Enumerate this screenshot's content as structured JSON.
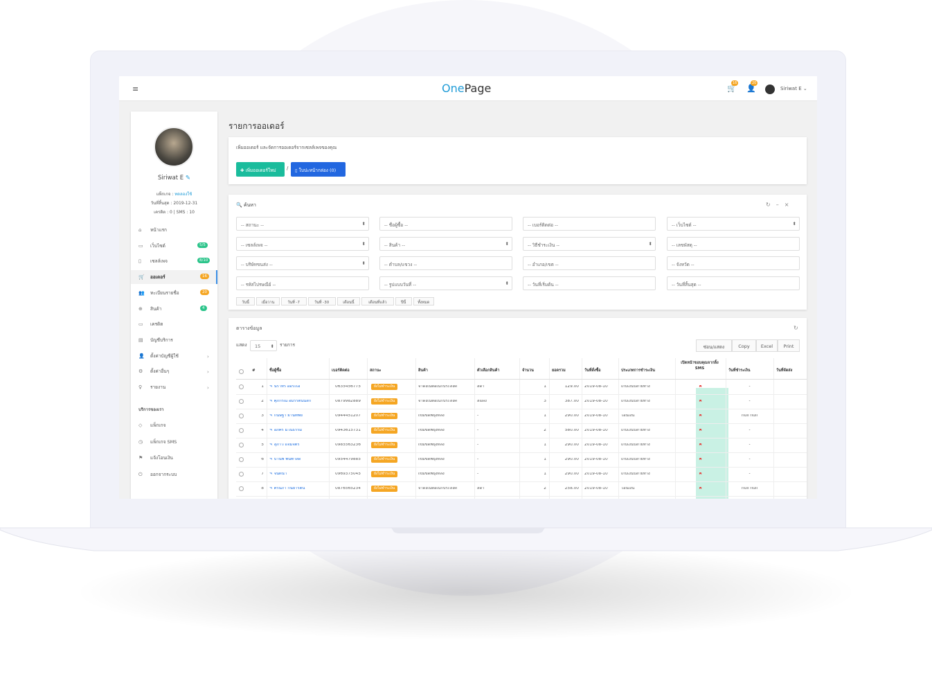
{
  "header": {
    "logo_one": "One",
    "logo_page": "Page",
    "cart_count": "16",
    "notify_count": "20",
    "user": "Siriwat E"
  },
  "profile": {
    "name": "Siriwat E",
    "package_label": "แพ็กเกจ",
    "package": "ทดลองใช้",
    "expiry": "วันที่สิ้นสุด : 2019-12-31",
    "credit": "เครดิต : 0 | SMS : 10"
  },
  "menu": [
    {
      "label": "หน้าแรก"
    },
    {
      "label": "เว็บไซต์",
      "badge": "5/5",
      "badge_color": "#2bc48a"
    },
    {
      "label": "เซลล์เพจ",
      "badge": "8/10",
      "badge_color": "#2bc48a"
    },
    {
      "label": "ออเดอร์",
      "badge": "16",
      "badge_color": "#f5a623"
    },
    {
      "label": "ทะเบียนรายชื่อ",
      "badge": "20",
      "badge_color": "#f5a623"
    },
    {
      "label": "สินค้า",
      "badge": "4",
      "badge_color": "#2bc48a"
    },
    {
      "label": "เครดิต"
    },
    {
      "label": "บัญชีบริการ"
    },
    {
      "label": "ตั้งค่าบัญชีผู้ใช้"
    },
    {
      "label": "ตั้งค่าอื่นๆ"
    },
    {
      "label": "รายงาน"
    }
  ],
  "services": {
    "title": "บริการของเรา",
    "items": [
      "แพ็กเกจ",
      "แพ็กเกจ SMS",
      "แจ้งโอนเงิน",
      "ออกจากระบบ"
    ]
  },
  "page": {
    "title": "รายการออเดอร์",
    "description": "เพิ่มออเดอร์ และจัดการออเดอร์จากเซลล์เพจของคุณ",
    "add_button": "เพิ่มออเดอร์ใหม่",
    "separator": "/",
    "box_button": "ใบปะหน้ากล่อง (0)"
  },
  "search": {
    "title": "ค้นหา",
    "fields": [
      {
        "label": "-- สถานะ --",
        "select": true
      },
      {
        "label": "-- ชื่อผู้ซื้อ --"
      },
      {
        "label": "-- เบอร์ติดต่อ --"
      },
      {
        "label": "-- เว็บไซต์ --",
        "select": true
      },
      {
        "label": "-- เซลล์เพจ --",
        "select": true
      },
      {
        "label": "-- สินค้า --",
        "select": true
      },
      {
        "label": "-- วิธีชำระเงิน --",
        "select": true
      },
      {
        "label": "-- เลขพัสดุ --"
      },
      {
        "label": "-- บริษัทขนส่ง --",
        "select": true
      },
      {
        "label": "-- ตำบล/แขวง --"
      },
      {
        "label": "-- อำเภอ/เขต --"
      },
      {
        "label": "-- จังหวัด --"
      },
      {
        "label": "-- รหัสไปรษณีย์ --"
      },
      {
        "label": "-- รูปแบบวันที่ --",
        "select": true
      },
      {
        "label": "-- วันที่เริ่มต้น --"
      },
      {
        "label": "-- วันที่สิ้นสุด --"
      }
    ],
    "quick": [
      "วันนี้",
      "เมื่อวาน",
      "วันที่ -7",
      "วันที่ -30",
      "เดือนนี้",
      "เดือนที่แล้ว",
      "ปีนี้",
      "ทั้งหมด"
    ]
  },
  "table": {
    "title": "ตารางข้อมูล",
    "show_label": "แสดง",
    "page_size": "15",
    "unit": "รายการ",
    "buttons": [
      "ซ่อน/แสดง",
      "Copy",
      "Excel",
      "Print"
    ],
    "columns": [
      "#",
      "ชื่อผู้ซื้อ",
      "เบอร์ติดต่อ",
      "สถานะ",
      "สินค้า",
      "ตัวเลือกสินค้า",
      "จำนวน",
      "ยอดรวม",
      "วันที่สั่งซื้อ",
      "ประเภทการชำระเงิน",
      "เปิดหน้าขอบคุณจากลิ้ง SMS",
      "วันที่ชำระเงิน",
      "วันที่จัดส่ง"
    ],
    "rows": [
      [
        "1",
        "นราทร ออระเอ",
        "0635456775",
        "ยังไม่ชำระเงิน",
        "จาดิ้งเน็ตอเนกประสงค์",
        "สีดำ",
        "1",
        "129.00",
        "2019-08-10",
        "เก็บเงินปลายทาง",
        "✖",
        "-",
        ""
      ],
      [
        "2",
        "ศุภกรณ์ อมรรัตน์นิสัก",
        "0879982889",
        "ยังไม่ชำระเงิน",
        "จาดิ้งเน็ตอเนกประสงค์",
        "สีแดง",
        "3",
        "387.00",
        "2019-08-10",
        "เก็บเงินปลายทาง",
        "✖",
        "-",
        ""
      ],
      [
        "3",
        "กนิษฐา ยานทิพย์",
        "0944451207",
        "ยังไม่ชำระเงิน",
        "เข็มขัดพยุงหลัง",
        "-",
        "1",
        "290.00",
        "2019-08-10",
        "โอนเงิน",
        "✖",
        "null null",
        ""
      ],
      [
        "4",
        "อภิศร มโนธรรม",
        "0943615731",
        "ยังไม่ชำระเงิน",
        "เข็มขัดพยุงหลัง",
        "-",
        "2",
        "580.00",
        "2019-08-10",
        "เก็บเงินปลายทาง",
        "✖",
        "-",
        ""
      ],
      [
        "5",
        "สุภาวี แจ่มจิตร",
        "0985563236",
        "ยังไม่ชำระเงิน",
        "เข็มขัดพยุงหลัง",
        "-",
        "1",
        "290.00",
        "2019-08-10",
        "เก็บเงินปลายทาง",
        "✖",
        "-",
        ""
      ],
      [
        "6",
        "บานพ พนพาลดี",
        "0954479885",
        "ยังไม่ชำระเงิน",
        "เข็มขัดพยุงหลัง",
        "-",
        "1",
        "290.00",
        "2019-08-10",
        "เก็บเงินปลายทาง",
        "✖",
        "-",
        ""
      ],
      [
        "7",
        "จินตนา",
        "0969375045",
        "ยังไม่ชำระเงิน",
        "เข็มขัดพยุงหลัง",
        "-",
        "1",
        "290.00",
        "2019-08-10",
        "เก็บเงินปลายทาง",
        "✖",
        "-",
        ""
      ],
      [
        "8",
        "ศิรินภา กันยารัตน์",
        "0876565234",
        "ยังไม่ชำระเงิน",
        "จาดิ้งเน็ตอเนกประสงค์",
        "สีดำ",
        "2",
        "258.00",
        "2019-08-10",
        "โอนเงิน",
        "✖",
        "null null",
        ""
      ]
    ]
  }
}
